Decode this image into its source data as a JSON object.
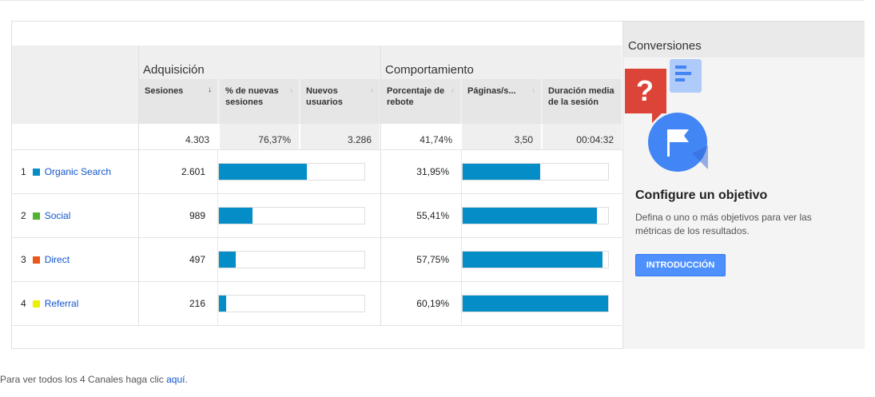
{
  "groups": {
    "acquisition": "Adquisición",
    "behavior": "Comportamiento",
    "conversions": "Conversiones"
  },
  "columns": [
    {
      "label": "Sesiones",
      "arrow": "↓",
      "sorted": true
    },
    {
      "label": "% de nuevas sesiones",
      "arrow": "↓",
      "sorted": false
    },
    {
      "label": "Nuevos usuarios",
      "arrow": "↓",
      "sorted": false
    },
    {
      "label": "Porcentaje de rebote",
      "arrow": "↓",
      "sorted": false
    },
    {
      "label": "Páginas/s...",
      "arrow": "↓",
      "sorted": false
    },
    {
      "label": "Duración media de la sesión",
      "arrow": "↓",
      "sorted": false
    }
  ],
  "totals": [
    "4.303",
    "76,37%",
    "3.286",
    "41,74%",
    "3,50",
    "00:04:32"
  ],
  "rows": [
    {
      "index": "1",
      "name": "Organic Search",
      "color": "#058dc7",
      "sessions": "2.601",
      "sessions_fraction": 0.604,
      "bounce": "31,95%",
      "bounce_fraction": 0.531
    },
    {
      "index": "2",
      "name": "Social",
      "color": "#50b432",
      "sessions": "989",
      "sessions_fraction": 0.23,
      "bounce": "55,41%",
      "bounce_fraction": 0.921
    },
    {
      "index": "3",
      "name": "Direct",
      "color": "#ed561b",
      "sessions": "497",
      "sessions_fraction": 0.115,
      "bounce": "57,75%",
      "bounce_fraction": 0.959
    },
    {
      "index": "4",
      "name": "Referral",
      "color": "#edef00",
      "sessions": "216",
      "sessions_fraction": 0.05,
      "bounce": "60,19%",
      "bounce_fraction": 1.0
    }
  ],
  "goal": {
    "title": "Configure un objetivo",
    "text": "Defina o uno o más objetivos para ver las métricas de los resultados.",
    "button": "INTRODUCCIÓN",
    "icon": "goal-flag-icon"
  },
  "footer": {
    "text": "Para ver todos los 4 Canales haga clic ",
    "link": "aquí",
    "period": "."
  }
}
